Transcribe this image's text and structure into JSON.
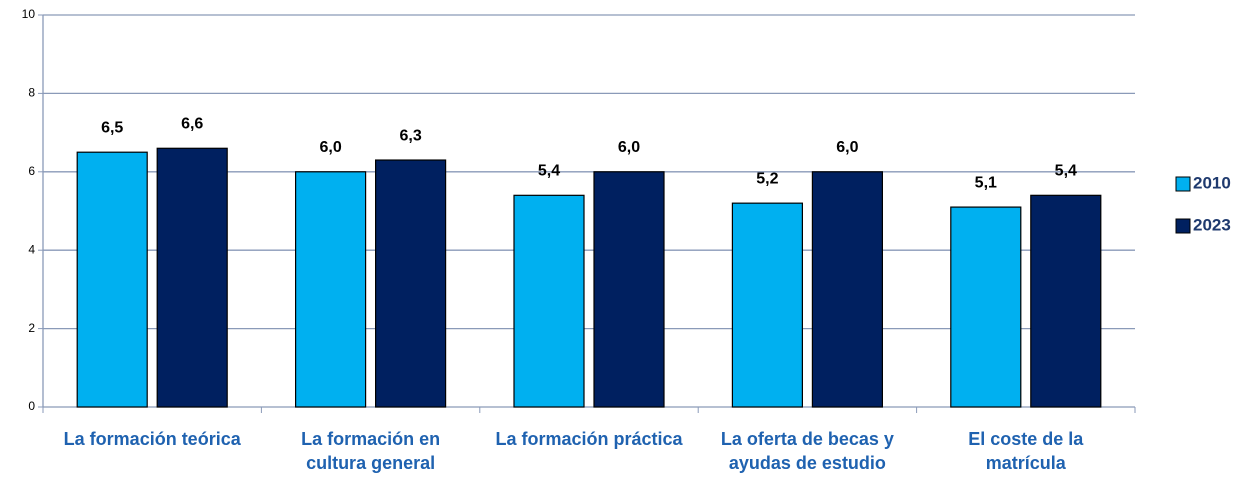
{
  "chart_data": {
    "type": "bar",
    "categories": [
      "La formación teórica",
      "La formación en\ncultura general",
      "La formación práctica",
      "La oferta de becas y\nayudas de estudio",
      "El coste de la\nmatrícula"
    ],
    "series": [
      {
        "name": "2010",
        "color": "#00b0f0",
        "values": [
          6.5,
          6.0,
          5.4,
          5.2,
          5.1
        ],
        "value_labels": [
          "6,5",
          "6,0",
          "5,4",
          "5,2",
          "5,1"
        ]
      },
      {
        "name": "2023",
        "color": "#002060",
        "values": [
          6.6,
          6.3,
          6.0,
          6.0,
          5.4
        ],
        "value_labels": [
          "6,6",
          "6,3",
          "6,0",
          "6,0",
          "5,4"
        ]
      }
    ],
    "ylim": [
      0,
      10
    ],
    "yticks": [
      0,
      2,
      4,
      6,
      8,
      10
    ],
    "grid": true,
    "legend": "right"
  }
}
